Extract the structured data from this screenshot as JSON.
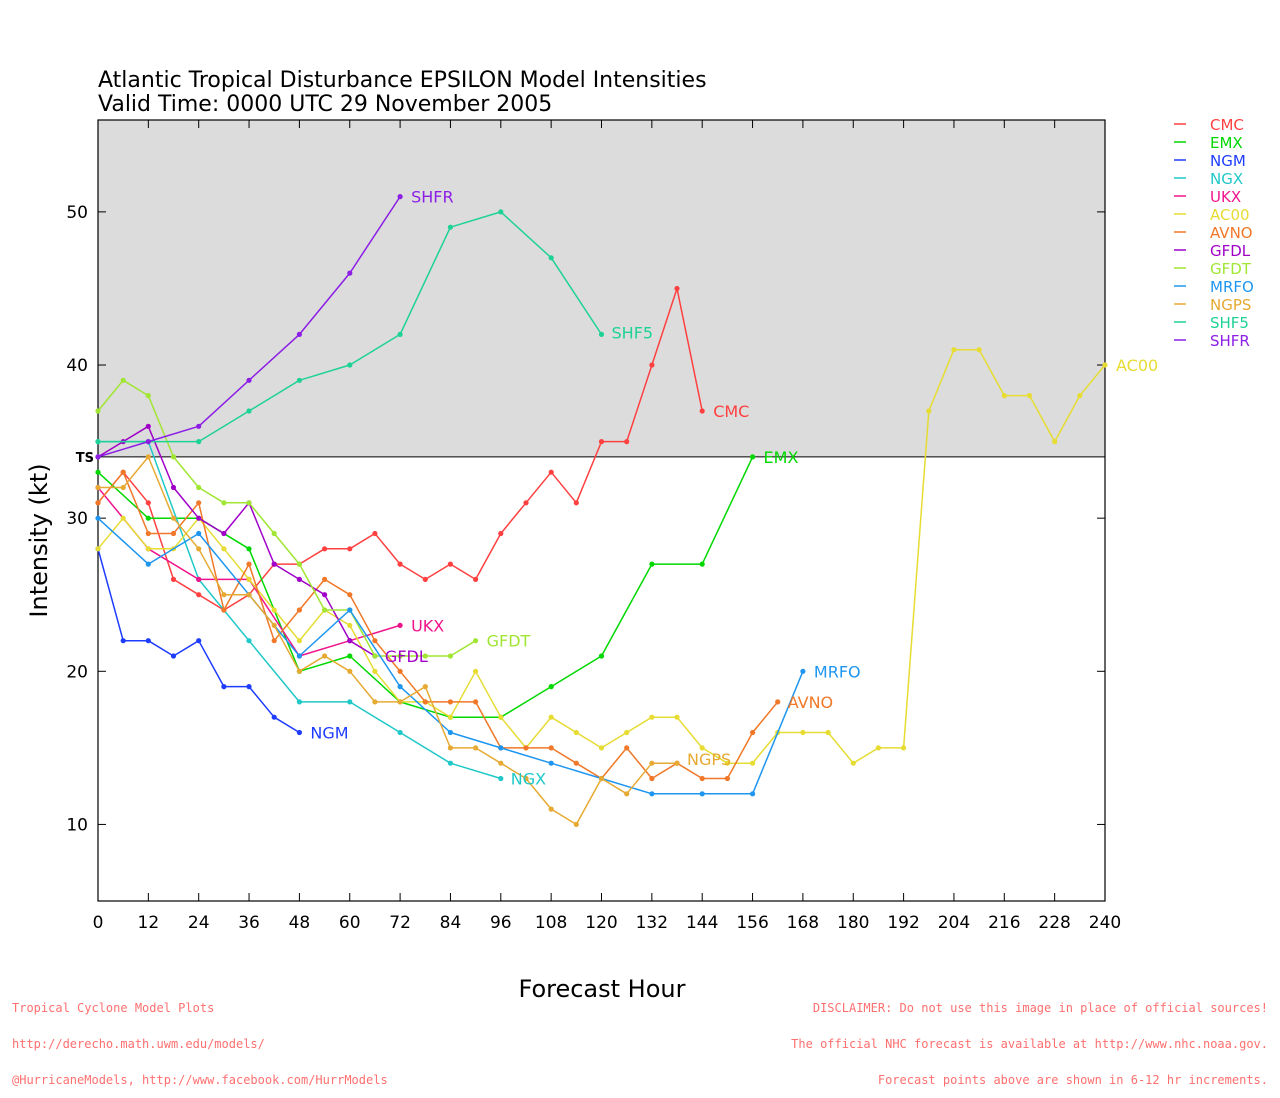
{
  "chart_data": {
    "type": "line",
    "title": "Atlantic Tropical Disturbance EPSILON Model Intensities",
    "subtitle": "Valid Time: 0000 UTC 29 November 2005",
    "xlabel": "Forecast Hour",
    "ylabel": "Intensity (kt)",
    "xlim": [
      0,
      240
    ],
    "ylim": [
      5,
      56
    ],
    "xticks": [
      0,
      12,
      24,
      36,
      48,
      60,
      72,
      84,
      96,
      108,
      120,
      132,
      144,
      156,
      168,
      180,
      192,
      204,
      216,
      228,
      240
    ],
    "yticks": [
      10,
      20,
      30,
      40,
      50
    ],
    "threshold": {
      "label": "TS",
      "value": 34,
      "shade_color": "#dcdcdc"
    },
    "legend_position": "top-right outside",
    "series": [
      {
        "name": "CMC",
        "color": "#ff4040",
        "x": [
          0,
          6,
          12,
          18,
          24,
          30,
          36,
          42,
          48,
          54,
          60,
          66,
          72,
          78,
          84,
          90,
          96,
          102,
          108,
          114,
          120,
          126,
          132,
          138,
          144
        ],
        "y": [
          31,
          33,
          31,
          26,
          25,
          24,
          25,
          27,
          27,
          28,
          28,
          29,
          27,
          26,
          27,
          26,
          29,
          31,
          33,
          31,
          35,
          35,
          40,
          45,
          37
        ]
      },
      {
        "name": "EMX",
        "color": "#00d800",
        "x": [
          0,
          12,
          24,
          36,
          48,
          60,
          72,
          84,
          96,
          108,
          120,
          132,
          144,
          156
        ],
        "y": [
          33,
          30,
          30,
          28,
          20,
          21,
          18,
          17,
          17,
          19,
          21,
          27,
          27,
          34
        ]
      },
      {
        "name": "NGM",
        "color": "#1e3cff",
        "x": [
          0,
          6,
          12,
          18,
          24,
          30,
          36,
          42,
          48
        ],
        "y": [
          28,
          22,
          22,
          21,
          22,
          19,
          19,
          17,
          16
        ]
      },
      {
        "name": "NGX",
        "color": "#20c8c8",
        "x": [
          0,
          12,
          24,
          36,
          48,
          60,
          72,
          84,
          96
        ],
        "y": [
          35,
          35,
          26,
          22,
          18,
          18,
          16,
          14,
          13
        ]
      },
      {
        "name": "UKX",
        "color": "#f0148c",
        "x": [
          0,
          12,
          24,
          36,
          48,
          60,
          72
        ],
        "y": [
          32,
          28,
          26,
          26,
          21,
          22,
          23
        ]
      },
      {
        "name": "AC00",
        "color": "#e6dc32",
        "x": [
          0,
          6,
          12,
          18,
          24,
          30,
          36,
          42,
          48,
          54,
          60,
          66,
          72,
          78,
          84,
          90,
          96,
          102,
          108,
          114,
          120,
          126,
          132,
          138,
          144,
          150,
          156,
          162,
          168,
          174,
          180,
          186,
          192,
          198,
          204,
          210,
          216,
          222,
          228,
          234,
          240
        ],
        "y": [
          28,
          30,
          28,
          28,
          30,
          28,
          26,
          24,
          22,
          24,
          23,
          20,
          18,
          18,
          17,
          20,
          17,
          15,
          17,
          16,
          15,
          16,
          17,
          17,
          15,
          14,
          14,
          16,
          16,
          16,
          14,
          15,
          15,
          37,
          41,
          41,
          38,
          38,
          35,
          38,
          40
        ]
      },
      {
        "name": "AVNO",
        "color": "#f07828",
        "x": [
          0,
          6,
          12,
          18,
          24,
          30,
          36,
          42,
          48,
          54,
          60,
          66,
          72,
          78,
          84,
          90,
          96,
          102,
          108,
          114,
          120,
          126,
          132,
          138,
          144,
          150,
          156,
          162
        ],
        "y": [
          31,
          33,
          29,
          29,
          31,
          24,
          27,
          22,
          24,
          26,
          25,
          22,
          20,
          18,
          18,
          18,
          15,
          15,
          15,
          14,
          13,
          15,
          13,
          14,
          13,
          13,
          16,
          18
        ]
      },
      {
        "name": "GFDL",
        "color": "#a000c8",
        "x": [
          0,
          6,
          12,
          18,
          24,
          30,
          36,
          42,
          48,
          54,
          60,
          66
        ],
        "y": [
          34,
          35,
          36,
          32,
          30,
          29,
          31,
          27,
          26,
          25,
          22,
          21
        ]
      },
      {
        "name": "GFDT",
        "color": "#a0e632",
        "x": [
          0,
          6,
          12,
          18,
          24,
          30,
          36,
          42,
          48,
          54,
          60,
          66,
          72,
          78,
          84,
          90
        ],
        "y": [
          37,
          39,
          38,
          34,
          32,
          31,
          31,
          29,
          27,
          24,
          24,
          21,
          21,
          21,
          21,
          22
        ]
      },
      {
        "name": "MRFO",
        "color": "#1e96f0",
        "x": [
          0,
          12,
          24,
          36,
          48,
          60,
          72,
          84,
          96,
          108,
          120,
          132,
          144,
          156,
          168
        ],
        "y": [
          30,
          27,
          29,
          25,
          21,
          24,
          19,
          16,
          15,
          14,
          13,
          12,
          12,
          12,
          20
        ]
      },
      {
        "name": "NGPS",
        "color": "#e6aa32",
        "x": [
          0,
          6,
          12,
          18,
          24,
          30,
          36,
          42,
          48,
          54,
          60,
          66,
          72,
          78,
          84,
          90,
          96,
          102,
          108,
          114,
          120,
          126,
          132,
          138
        ],
        "y": [
          32,
          32,
          34,
          30,
          28,
          25,
          25,
          23,
          20,
          21,
          20,
          18,
          18,
          19,
          15,
          15,
          14,
          13,
          11,
          10,
          13,
          12,
          14,
          14
        ]
      },
      {
        "name": "SHF5",
        "color": "#1ed296",
        "x": [
          0,
          12,
          24,
          36,
          48,
          60,
          72,
          84,
          96,
          108,
          120
        ],
        "y": [
          35,
          35,
          35,
          37,
          39,
          40,
          42,
          49,
          50,
          47,
          42
        ]
      },
      {
        "name": "SHFR",
        "color": "#8c1ee6",
        "x": [
          0,
          12,
          24,
          36,
          48,
          60,
          72
        ],
        "y": [
          34,
          35,
          36,
          39,
          42,
          46,
          51
        ]
      }
    ]
  },
  "footer": {
    "left_line1": "Tropical Cyclone Model Plots",
    "left_line2": "http://derecho.math.uwm.edu/models/",
    "left_line3": "@HurricaneModels, http://www.facebook.com/HurrModels",
    "right_line1": "DISCLAIMER: Do not use this image in place of official sources!",
    "right_line2": "The official NHC forecast is available at http://www.nhc.noaa.gov.",
    "right_line3": "Forecast points above are shown in 6-12 hr increments."
  }
}
